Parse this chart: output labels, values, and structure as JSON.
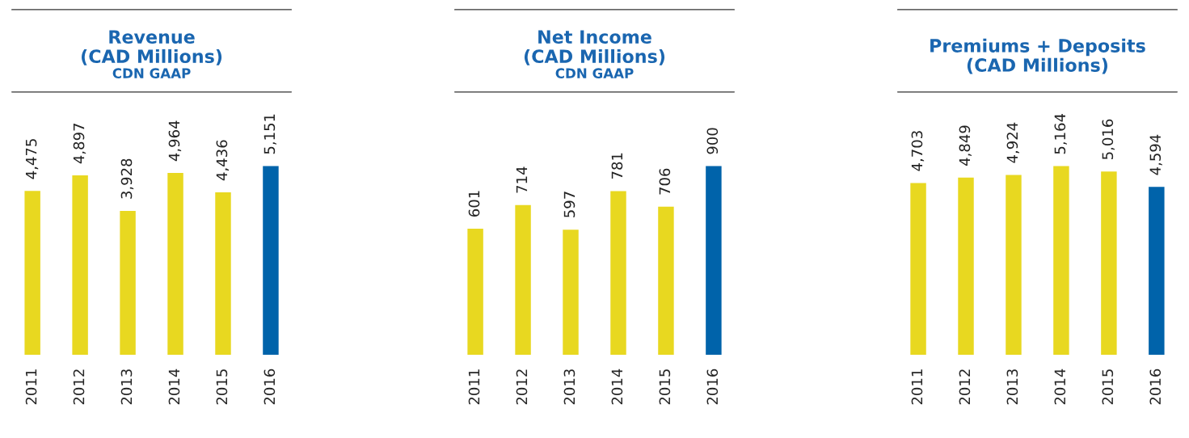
{
  "chart_data": [
    {
      "type": "bar",
      "title": "Revenue\n(CAD Millions)",
      "subtitle": "CDN GAAP",
      "categories": [
        "2011",
        "2012",
        "2013",
        "2014",
        "2015",
        "2016"
      ],
      "values": [
        4475,
        4897,
        3928,
        4964,
        4436,
        5151
      ],
      "value_labels": [
        "4,475",
        "4,897",
        "3,928",
        "4,964",
        "4,436",
        "5,151"
      ],
      "colors": [
        "#e8d820",
        "#e8d820",
        "#e8d820",
        "#e8d820",
        "#e8d820",
        "#0063aa"
      ]
    },
    {
      "type": "bar",
      "title": "Net Income\n(CAD Millions)",
      "subtitle": "CDN GAAP",
      "categories": [
        "2011",
        "2012",
        "2013",
        "2014",
        "2015",
        "2016"
      ],
      "values": [
        601,
        714,
        597,
        781,
        706,
        900
      ],
      "value_labels": [
        "601",
        "714",
        "597",
        "781",
        "706",
        "900"
      ],
      "colors": [
        "#e8d820",
        "#e8d820",
        "#e8d820",
        "#e8d820",
        "#e8d820",
        "#0063aa"
      ]
    },
    {
      "type": "bar",
      "title": "Premiums + Deposits\n(CAD Millions)",
      "categories": [
        "2011",
        "2012",
        "2013",
        "2014",
        "2015",
        "2016"
      ],
      "values": [
        4703,
        4849,
        4924,
        5164,
        5016,
        4594
      ],
      "value_labels": [
        "4,703",
        "4,849",
        "4,924",
        "5,164",
        "5,016",
        "4,594"
      ],
      "colors": [
        "#e8d820",
        "#e8d820",
        "#e8d820",
        "#e8d820",
        "#e8d820",
        "#0063aa"
      ]
    }
  ]
}
